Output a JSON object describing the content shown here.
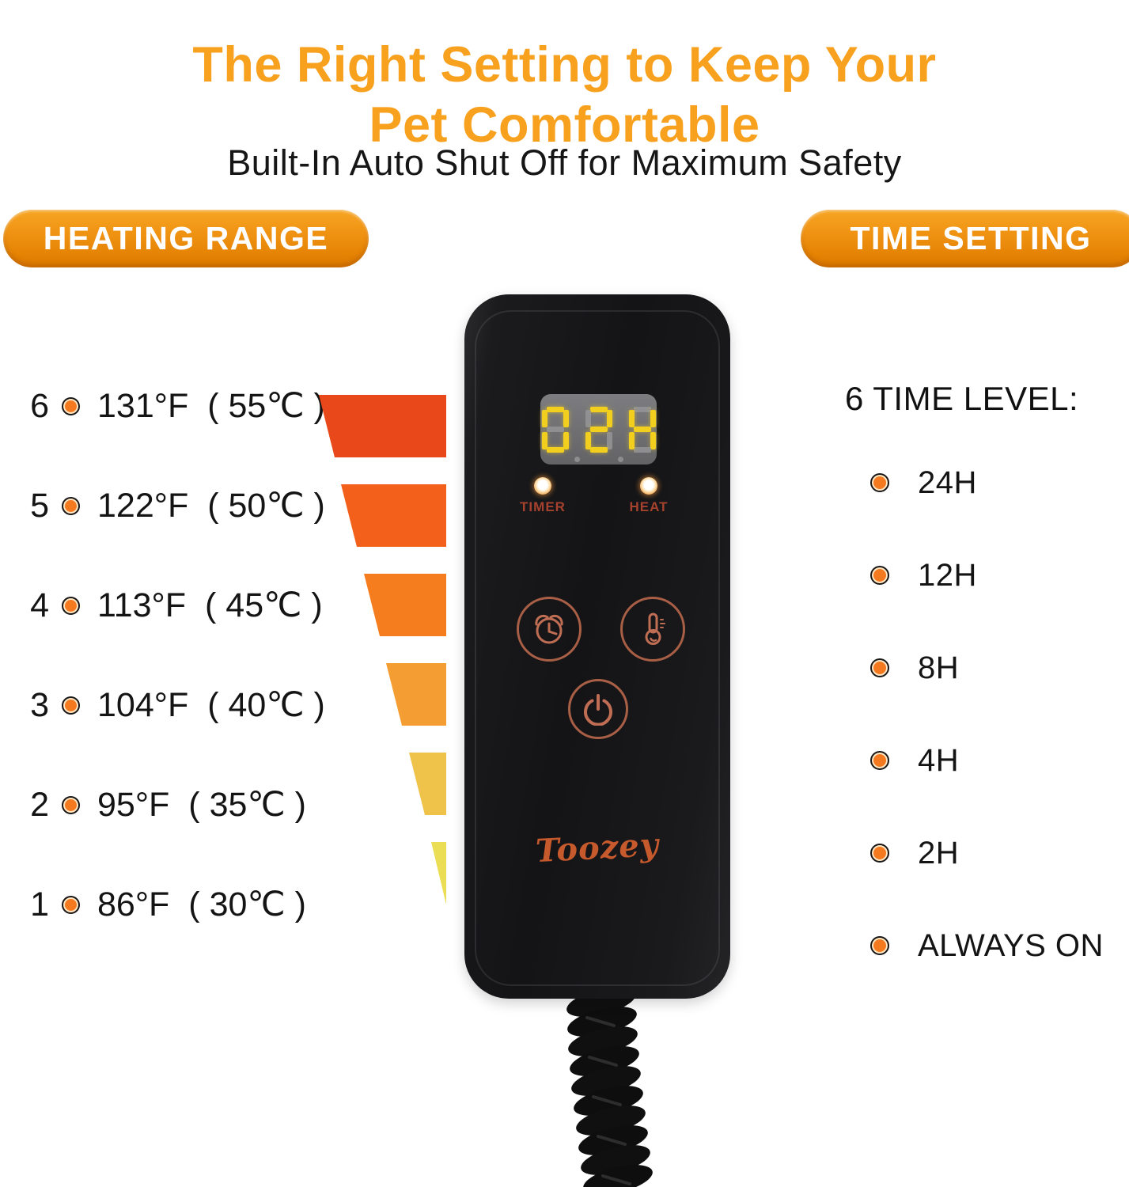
{
  "header": {
    "title_line1": "The Right Setting to Keep Your",
    "title_line2": "Pet Comfortable",
    "subtitle": "Built-In Auto Shut Off for Maximum Safety"
  },
  "badges": {
    "heating_range": "HEATING RANGE",
    "time_setting": "TIME SETTING"
  },
  "heating_levels": [
    {
      "level": "6",
      "fahrenheit": "131°F",
      "celsius": "( 55℃ )",
      "bar_color": "#E8481A"
    },
    {
      "level": "5",
      "fahrenheit": "122°F",
      "celsius": "( 50℃ )",
      "bar_color": "#F2601C"
    },
    {
      "level": "4",
      "fahrenheit": "113°F",
      "celsius": "( 45℃ )",
      "bar_color": "#F57D1E"
    },
    {
      "level": "3",
      "fahrenheit": "104°F",
      "celsius": "( 40℃ )",
      "bar_color": "#F49D33"
    },
    {
      "level": "2",
      "fahrenheit": "95°F",
      "celsius": "( 35℃ )",
      "bar_color": "#EFC24A"
    },
    {
      "level": "1",
      "fahrenheit": "86°F",
      "celsius": "( 30℃ )",
      "bar_color": "#EBDE55"
    }
  ],
  "time_setting": {
    "heading": "6 TIME LEVEL:",
    "items": [
      "24H",
      "12H",
      "8H",
      "4H",
      "2H",
      "ALWAYS ON"
    ]
  },
  "controller": {
    "display_value": "02H",
    "timer_label": "TIMER",
    "heat_label": "HEAT",
    "brand": "Toozey",
    "button_icons": [
      "alarm-clock-icon",
      "thermometer-icon",
      "power-icon"
    ]
  },
  "colors": {
    "accent_orange": "#F7A11E",
    "pill_gradient_top": "#F7A523",
    "pill_gradient_bottom": "#DC7A00",
    "bullet_orange": "#F4791F",
    "display_digit_lit": "#F2CF1E",
    "display_digit_unlit": "#97979A",
    "indicator_label": "#A6412E",
    "button_outline": "#A95F46",
    "brand_logo": "#C65A2D",
    "device_body": "#161618"
  }
}
